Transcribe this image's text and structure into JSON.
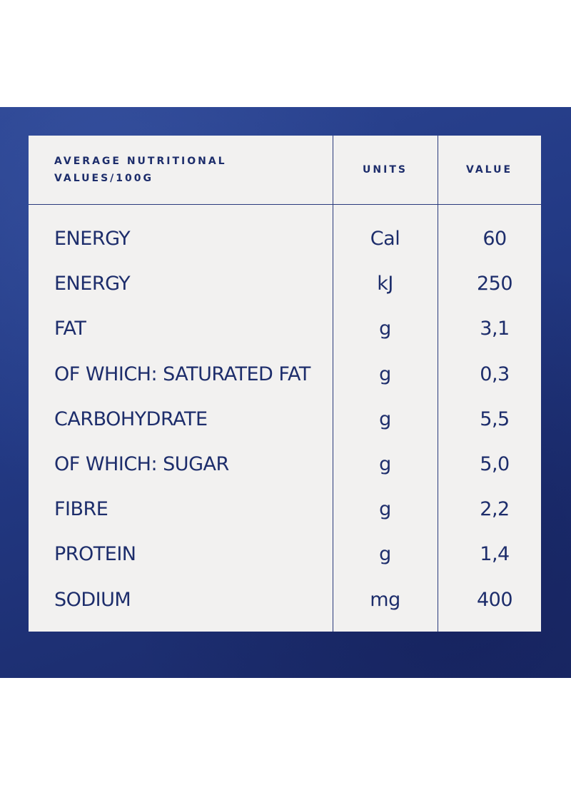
{
  "table": {
    "headers": {
      "label_line1": "AVERAGE NUTRITIONAL",
      "label_line2": "VALUES/100G",
      "units": "UNITS",
      "value": "VALUE"
    },
    "rows": [
      {
        "name": "ENERGY",
        "unit": "Cal",
        "value": "60"
      },
      {
        "name": "ENERGY",
        "unit": "kJ",
        "value": "250"
      },
      {
        "name": "FAT",
        "unit": "g",
        "value": "3,1"
      },
      {
        "name": "OF WHICH: SATURATED FAT",
        "unit": "g",
        "value": "0,3"
      },
      {
        "name": "CARBOHYDRATE",
        "unit": "g",
        "value": "5,5"
      },
      {
        "name": "OF WHICH: SUGAR",
        "unit": "g",
        "value": "5,0"
      },
      {
        "name": "FIBRE",
        "unit": "g",
        "value": "2,2"
      },
      {
        "name": "PROTEIN",
        "unit": "g",
        "value": "1,4"
      },
      {
        "name": "SODIUM",
        "unit": "mg",
        "value": "400"
      }
    ]
  },
  "colors": {
    "background_blue": "#233a85",
    "panel": "#f2f1f0",
    "text": "#1d2d6b"
  }
}
